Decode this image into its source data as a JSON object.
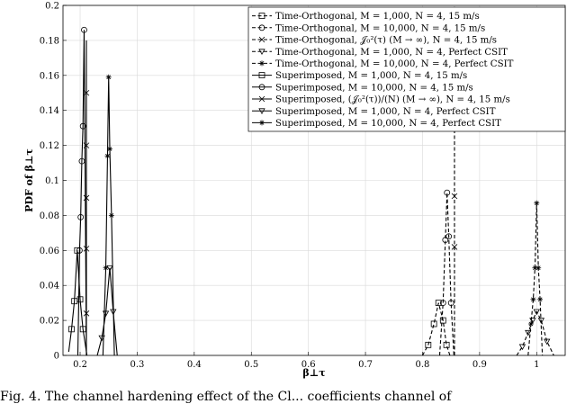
{
  "caption": "Fig. 4. The channel hardening effect of the Cl... coefficients channel of",
  "chart_data": {
    "type": "line",
    "xlabel": "β⊥τ",
    "ylabel": "PDF of β⊥τ",
    "xlim": [
      0.17,
      1.05
    ],
    "ylim": [
      0,
      0.2
    ],
    "xticks": [
      0.2,
      0.3,
      0.4,
      0.5,
      0.6,
      0.7,
      0.8,
      0.9,
      1
    ],
    "xtick_labels": [
      "0.2",
      "0.3",
      "0.4",
      "0.5",
      "0.6",
      "0.7",
      "0.8",
      "0.9",
      "1"
    ],
    "yticks": [
      0,
      0.02,
      0.04,
      0.06,
      0.08,
      0.1,
      0.12,
      0.14,
      0.16,
      0.18,
      0.2
    ],
    "ytick_labels": [
      "0",
      "0.02",
      "0.04",
      "0.06",
      "0.08",
      "0.1",
      "0.12",
      "0.14",
      "0.16",
      "0.18",
      "0.2"
    ],
    "grid": true,
    "legend_position": "top-right",
    "series": [
      {
        "name": "Time-Orthogonal, M = 1,000, N = 4, 15 m/s",
        "style": "dashed",
        "marker": "square",
        "x": [
          0.8,
          0.81,
          0.82,
          0.828,
          0.836,
          0.842,
          0.848
        ],
        "y": [
          0,
          0.006,
          0.018,
          0.03,
          0.02,
          0.006,
          0
        ]
      },
      {
        "name": "Time-Orthogonal, M = 10,000, N = 4, 15 m/s",
        "style": "dashed",
        "marker": "circle",
        "x": [
          0.83,
          0.836,
          0.84,
          0.843,
          0.846,
          0.85,
          0.855
        ],
        "y": [
          0,
          0.03,
          0.066,
          0.093,
          0.068,
          0.03,
          0
        ]
      },
      {
        "name": "Time-Orthogonal, J0²(τ) (M→∞), N = 4, 15 m/s",
        "style": "dashed",
        "marker": "x",
        "x": [
          0.856,
          0.856,
          0.856,
          0.856
        ],
        "y": [
          0,
          0.062,
          0.091,
          0.2
        ]
      },
      {
        "name": "Time-Orthogonal, M = 1,000, N = 4, Perfect CSIT",
        "style": "dashed",
        "marker": "triangle",
        "x": [
          0.965,
          0.975,
          0.985,
          0.993,
          1.0,
          1.008,
          1.018,
          1.03
        ],
        "y": [
          0,
          0.005,
          0.013,
          0.02,
          0.025,
          0.02,
          0.008,
          0
        ]
      },
      {
        "name": "Time-Orthogonal, M = 10,000, N = 4, Perfect CSIT",
        "style": "dashed",
        "marker": "asterisk",
        "x": [
          0.985,
          0.99,
          0.994,
          0.997,
          1.0,
          1.003,
          1.006,
          1.01
        ],
        "y": [
          0,
          0.018,
          0.032,
          0.05,
          0.087,
          0.05,
          0.032,
          0
        ]
      },
      {
        "name": "Superimposed, M = 1,000, N = 4, 15 m/s",
        "style": "solid",
        "marker": "square",
        "x": [
          0.18,
          0.185,
          0.19,
          0.195,
          0.2,
          0.205,
          0.212
        ],
        "y": [
          0.002,
          0.015,
          0.031,
          0.06,
          0.032,
          0.015,
          0
        ]
      },
      {
        "name": "Superimposed, M = 10,000, N = 4, 15 m/s",
        "style": "solid",
        "marker": "circle",
        "x": [
          0.196,
          0.199,
          0.201,
          0.203,
          0.205,
          0.207,
          0.211
        ],
        "y": [
          0,
          0.06,
          0.079,
          0.111,
          0.131,
          0.186,
          0
        ]
      },
      {
        "name": "Superimposed, (J0²(τ))/(N) (M→∞), N = 4, 15 m/s",
        "style": "solid",
        "marker": "x",
        "x": [
          0.211,
          0.211,
          0.211,
          0.211,
          0.211,
          0.211,
          0.211
        ],
        "y": [
          0,
          0.024,
          0.061,
          0.09,
          0.12,
          0.15,
          0.18
        ]
      },
      {
        "name": "Superimposed, M = 1,000, N = 4, Perfect CSIT",
        "style": "solid",
        "marker": "triangle",
        "x": [
          0.23,
          0.238,
          0.245,
          0.252,
          0.258,
          0.265
        ],
        "y": [
          0,
          0.01,
          0.024,
          0.05,
          0.025,
          0
        ]
      },
      {
        "name": "Superimposed, M = 10,000, N = 4, Perfect CSIT",
        "style": "solid",
        "marker": "asterisk",
        "x": [
          0.24,
          0.245,
          0.248,
          0.25,
          0.252,
          0.255,
          0.26
        ],
        "y": [
          0,
          0.05,
          0.114,
          0.159,
          0.118,
          0.08,
          0
        ]
      }
    ]
  },
  "legend_display": [
    "Time-Orthogonal, M = 1,000, N = 4, 15 m/s",
    "Time-Orthogonal, M = 10,000, N = 4, 15 m/s",
    "Time-Orthogonal, 𝒥₀²(τ) (M → ∞), N = 4, 15 m/s",
    "Time-Orthogonal, M = 1,000, N = 4, Perfect CSIT",
    "Time-Orthogonal, M = 10,000, N = 4, Perfect CSIT",
    "Superimposed, M = 1,000, N = 4, 15 m/s",
    "Superimposed, M = 10,000, N = 4, 15 m/s",
    "Superimposed, (𝒥₀²(τ))/(N) (M → ∞), N = 4, 15 m/s",
    "Superimposed, M = 1,000, N = 4, Perfect CSIT",
    "Superimposed, M = 10,000, N = 4, Perfect CSIT"
  ]
}
